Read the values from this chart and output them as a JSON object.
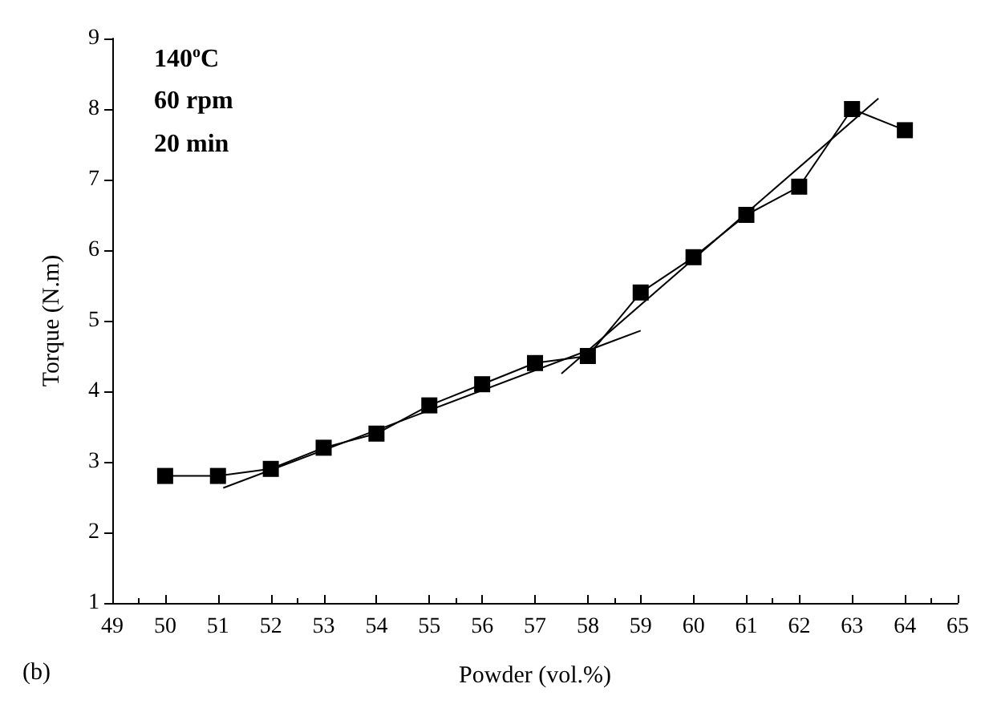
{
  "chart_data": {
    "type": "line",
    "xlabel": "Powder (vol.%)",
    "ylabel": "Torque (N.m)",
    "annotations": [
      "140$^{o}$C",
      "60 rpm",
      "20 min",
      "(b)"
    ],
    "series": [
      {
        "color": "#000000",
        "marker": "square",
        "x": [
          50,
          51,
          52,
          53,
          54,
          55,
          56,
          57,
          58,
          59,
          60,
          61,
          62,
          63,
          64
        ],
        "values": [
          2.8,
          2.8,
          2.9,
          3.2,
          3.4,
          3.8,
          4.1,
          4.4,
          4.5,
          5.4,
          5.9,
          6.5,
          6.9,
          8.0,
          7.7
        ]
      },
      {
        "color": "#000000",
        "marker": "none",
        "x": [
          51.1,
          59
        ],
        "values": [
          2.63,
          4.86
        ]
      },
      {
        "color": "#000000",
        "marker": "none",
        "x": [
          57.5,
          63.5
        ],
        "values": [
          4.25,
          8.15
        ]
      }
    ],
    "xlim": [
      49,
      65
    ],
    "xticks": [
      49,
      50,
      51,
      52,
      53,
      54,
      55,
      56,
      57,
      58,
      59,
      60,
      61,
      62,
      63,
      64,
      65
    ],
    "ylim": [
      1,
      9
    ],
    "yticks": [
      1,
      2,
      3,
      4,
      5,
      6,
      7,
      8,
      9
    ],
    "line_style": "solid",
    "grid": false
  }
}
